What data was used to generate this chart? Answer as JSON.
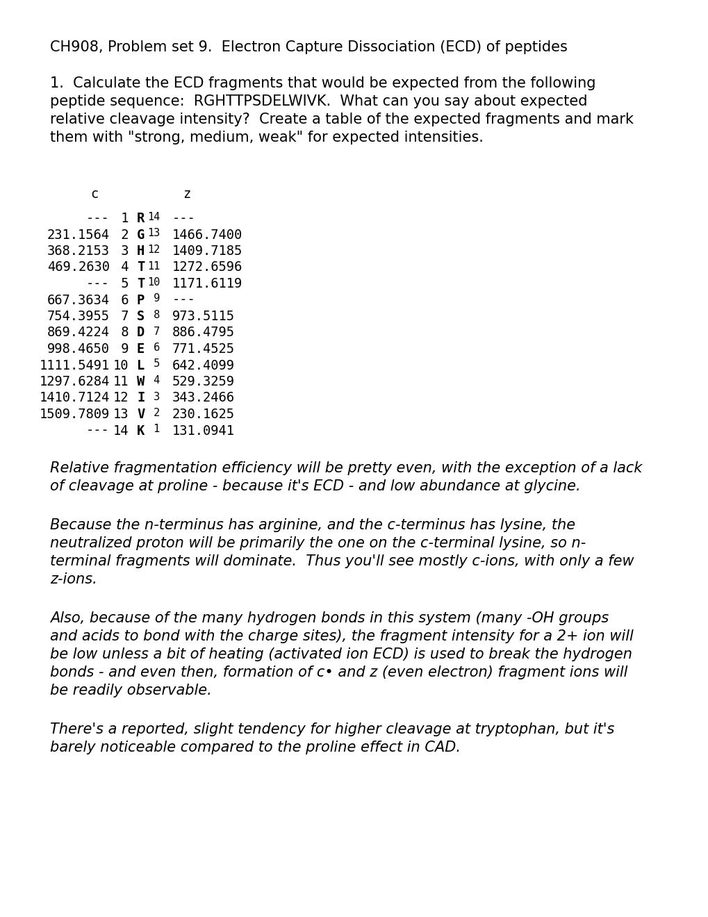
{
  "title": "CH908, Problem set 9.  Electron Capture Dissociation (ECD) of peptides",
  "question_lines": [
    "1.  Calculate the ECD fragments that would be expected from the following",
    "peptide sequence:  RGHTTPSDELWIVK.  What can you say about expected",
    "relative cleavage intensity?  Create a table of the expected fragments and mark",
    "them with \"strong, medium, weak\" for expected intensities."
  ],
  "table_rows": [
    {
      "c_val": "---",
      "c_num": " 1",
      "aa": "R",
      "z_num": "14",
      "z_val": "---"
    },
    {
      "c_val": "231.1564",
      "c_num": " 2",
      "aa": "G",
      "z_num": "13",
      "z_val": "1466.7400"
    },
    {
      "c_val": "368.2153",
      "c_num": " 3",
      "aa": "H",
      "z_num": "12",
      "z_val": "1409.7185"
    },
    {
      "c_val": "469.2630",
      "c_num": " 4",
      "aa": "T",
      "z_num": "11",
      "z_val": "1272.6596"
    },
    {
      "c_val": "---",
      "c_num": " 5",
      "aa": "T",
      "z_num": "10",
      "z_val": "1171.6119"
    },
    {
      "c_val": "667.3634",
      "c_num": " 6",
      "aa": "P",
      "z_num": " 9",
      "z_val": "---"
    },
    {
      "c_val": "754.3955",
      "c_num": " 7",
      "aa": "S",
      "z_num": " 8",
      "z_val": "973.5115"
    },
    {
      "c_val": "869.4224",
      "c_num": " 8",
      "aa": "D",
      "z_num": " 7",
      "z_val": "886.4795"
    },
    {
      "c_val": "998.4650",
      "c_num": " 9",
      "aa": "E",
      "z_num": " 6",
      "z_val": "771.4525"
    },
    {
      "c_val": "1111.5491",
      "c_num": "10",
      "aa": "L",
      "z_num": " 5",
      "z_val": "642.4099"
    },
    {
      "c_val": "1297.6284",
      "c_num": "11",
      "aa": "W",
      "z_num": " 4",
      "z_val": "529.3259"
    },
    {
      "c_val": "1410.7124",
      "c_num": "12",
      "aa": "I",
      "z_num": " 3",
      "z_val": "343.2466"
    },
    {
      "c_val": "1509.7809",
      "c_num": "13",
      "aa": "V",
      "z_num": " 2",
      "z_val": "230.1625"
    },
    {
      "c_val": "---",
      "c_num": "14",
      "aa": "K",
      "z_num": " 1",
      "z_val": "131.0941"
    }
  ],
  "para1_lines": [
    "Relative fragmentation efficiency will be pretty even, with the exception of a lack",
    "of cleavage at proline - because it's ECD - and low abundance at glycine."
  ],
  "para2_lines": [
    "Because the n-terminus has arginine, and the c-terminus has lysine, the",
    "neutralized proton will be primarily the one on the c-terminal lysine, so n-",
    "terminal fragments will dominate.  Thus you'll see mostly c-ions, with only a few",
    "z-ions."
  ],
  "para3_lines": [
    "Also, because of the many hydrogen bonds in this system (many -OH groups",
    "and acids to bond with the charge sites), the fragment intensity for a 2+ ion will",
    "be low unless a bit of heating (activated ion ECD) is used to break the hydrogen",
    "bonds - and even then, formation of c• and z (even electron) fragment ions will",
    "be readily observable."
  ],
  "para4_lines": [
    "There's a reported, slight tendency for higher cleavage at tryptophan, but it's",
    "barely noticeable compared to the proline effect in CAD."
  ],
  "background_color": "#ffffff",
  "text_color": "#000000"
}
